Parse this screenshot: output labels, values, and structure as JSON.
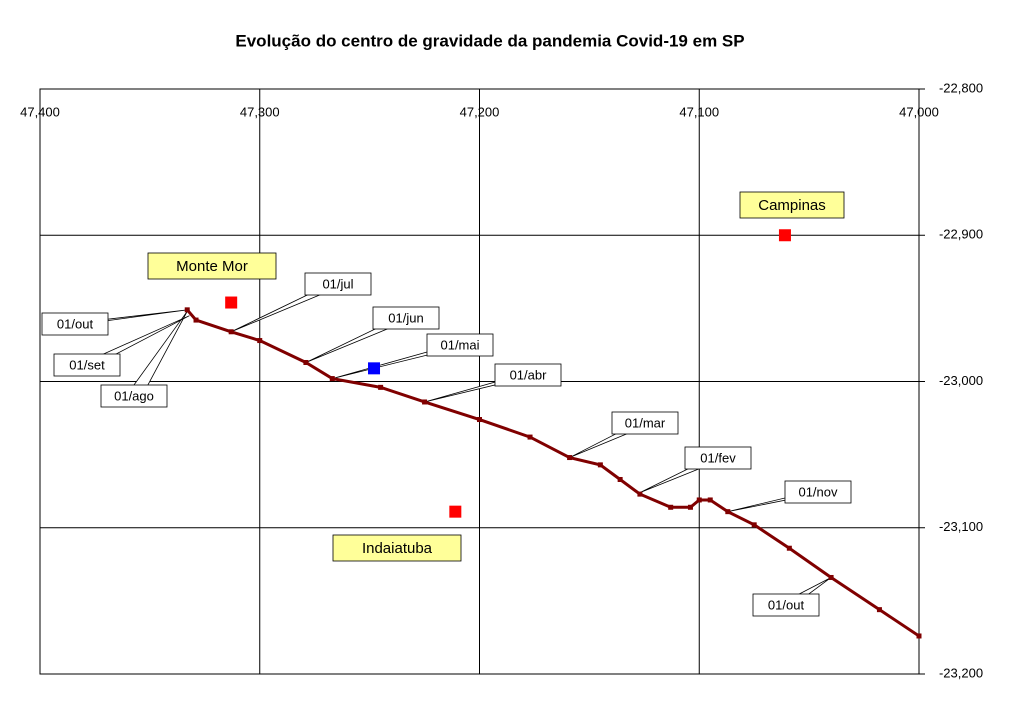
{
  "chart_data": {
    "type": "line",
    "title": "Evolução do centro de gravidade da pandemia Covid-19 em SP",
    "x": [
      47.0,
      47.018,
      47.04,
      47.059,
      47.075,
      47.087,
      47.095,
      47.1,
      47.104,
      47.113,
      47.127,
      47.136,
      47.145,
      47.159,
      47.177,
      47.2,
      47.225,
      47.245,
      47.267,
      47.279,
      47.3,
      47.313,
      47.329,
      47.333
    ],
    "series": [
      {
        "color": "#800000",
        "values": [
          -23.174,
          -23.156,
          -23.134,
          -23.114,
          -23.098,
          -23.089,
          -23.081,
          -23.081,
          -23.086,
          -23.086,
          -23.077,
          -23.067,
          -23.057,
          -23.052,
          -23.038,
          -23.026,
          -23.014,
          -23.004,
          -22.998,
          -22.987,
          -22.972,
          -22.966,
          -22.958,
          -22.951
        ]
      }
    ],
    "xlim": [
      47.4,
      47.0
    ],
    "xticks": [
      {
        "value": 47.4,
        "label": "47,400"
      },
      {
        "value": 47.3,
        "label": "47,300"
      },
      {
        "value": 47.2,
        "label": "47,200"
      },
      {
        "value": 47.1,
        "label": "47,100"
      },
      {
        "value": 47.0,
        "label": "47,000"
      }
    ],
    "ylim": [
      -23.2,
      -22.8
    ],
    "yticks": [
      {
        "value": -22.8,
        "label": "-22,800"
      },
      {
        "value": -22.9,
        "label": "-22,900"
      },
      {
        "value": -23.0,
        "label": "-23,000"
      },
      {
        "value": -23.1,
        "label": "-23,100"
      },
      {
        "value": -23.2,
        "label": "-23,200"
      }
    ],
    "grid": true,
    "markers": [
      {
        "label": "Campinas",
        "x": 47.061,
        "y": -22.9,
        "color": "#ff0000"
      },
      {
        "label": "Monte Mor",
        "x": 47.313,
        "y": -22.946,
        "color": "#ff0000"
      },
      {
        "label": "Indaiatuba",
        "x": 47.211,
        "y": -23.089,
        "color": "#ff0000"
      },
      {
        "x": 47.248,
        "y": -22.991,
        "color": "#0000ff"
      }
    ],
    "annotations": [
      {
        "text": "01/out",
        "x": 47.04,
        "y": -23.134
      },
      {
        "text": "01/nov",
        "x": 47.087,
        "y": -23.089
      },
      {
        "text": "01/fev",
        "x": 47.127,
        "y": -23.076
      },
      {
        "text": "01/mar",
        "x": 47.159,
        "y": -23.052
      },
      {
        "text": "01/abr",
        "x": 47.225,
        "y": -23.014
      },
      {
        "text": "01/mai",
        "x": 47.267,
        "y": -22.998
      },
      {
        "text": "01/jun",
        "x": 47.279,
        "y": -22.987
      },
      {
        "text": "01/jul",
        "x": 47.313,
        "y": -22.966
      },
      {
        "text": "01/ago",
        "x": 47.333,
        "y": -22.952
      },
      {
        "text": "01/set",
        "x": 47.332,
        "y": -22.955
      },
      {
        "text": "01/out",
        "x": 47.333,
        "y": -22.951
      }
    ]
  }
}
